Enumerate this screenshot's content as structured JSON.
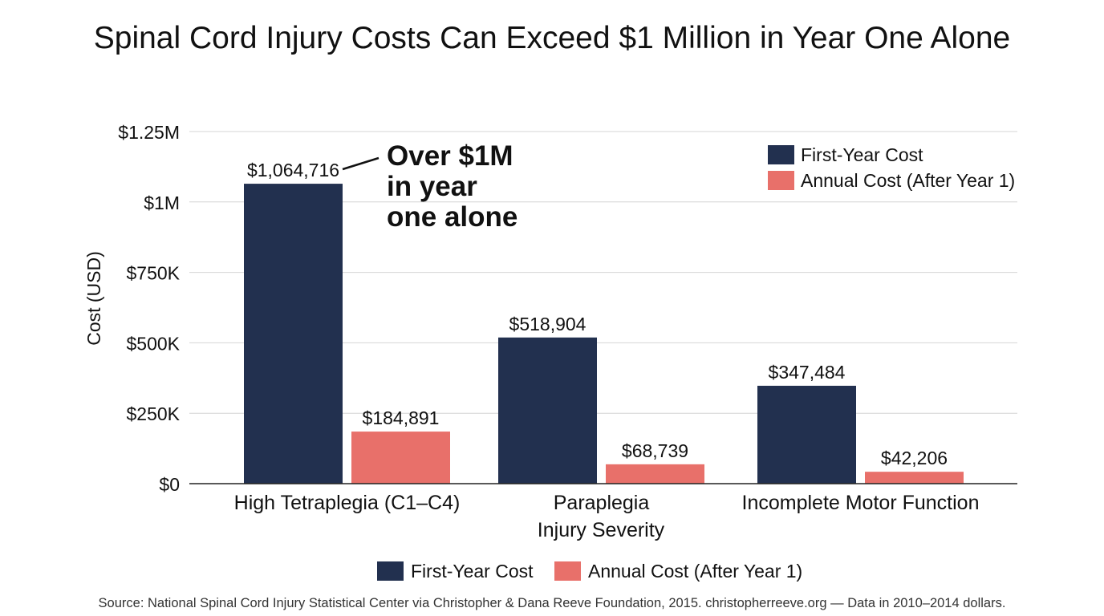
{
  "chart_data": {
    "type": "bar",
    "title": "Spinal Cord Injury Costs Can Exceed $1 Million in Year One Alone",
    "xlabel": "Injury Severity",
    "ylabel": "Cost (USD)",
    "ylim": [
      0,
      1250000
    ],
    "yticks": [
      {
        "value": 0,
        "label": "$0"
      },
      {
        "value": 250000,
        "label": "$250K"
      },
      {
        "value": 500000,
        "label": "$500K"
      },
      {
        "value": 750000,
        "label": "$750K"
      },
      {
        "value": 1000000,
        "label": "$1M"
      },
      {
        "value": 1250000,
        "label": "$1.25M"
      }
    ],
    "grid": true,
    "categories": [
      "High Tetraplegia (C1–C4)",
      "Paraplegia",
      "Incomplete Motor Function"
    ],
    "series": [
      {
        "name": "First-Year Cost",
        "color": "#22304f",
        "values": [
          1064716,
          518904,
          347484
        ],
        "labels": [
          "$1,064,716",
          "$518,904",
          "$347,484"
        ]
      },
      {
        "name": "Annual Cost (After Year 1)",
        "color": "#e8706a",
        "values": [
          184891,
          68739,
          42206
        ],
        "labels": [
          "$184,891",
          "$68,739",
          "$42,206"
        ]
      }
    ],
    "legend_placement": [
      "top-right",
      "bottom"
    ],
    "annotation": {
      "lines": [
        "Over $1M",
        "in year",
        "one alone"
      ],
      "target_category": 0,
      "target_series": 0
    }
  },
  "source": "Source: National Spinal Cord Injury Statistical Center via Christopher & Dana Reeve Foundation, 2015. christopherreeve.org — Data in 2010–2014 dollars."
}
